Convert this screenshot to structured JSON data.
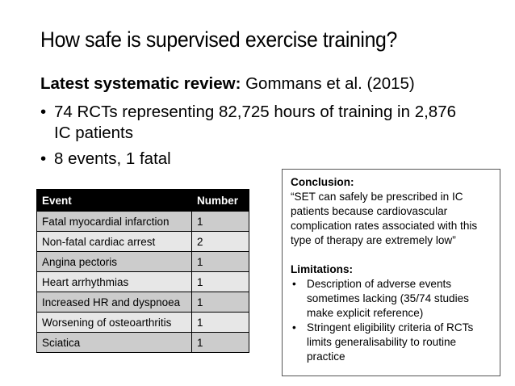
{
  "slide": {
    "title": "How safe is supervised exercise training?",
    "subhead_bold": "Latest systematic review:",
    "subhead_rest": " Gommans et al. (2015)",
    "bullets": [
      "74 RCTs representing 82,725 hours of training in 2,876 IC patients",
      "8 events, 1 fatal"
    ]
  },
  "table": {
    "headers": [
      "Event",
      "Number"
    ],
    "rows": [
      [
        "Fatal myocardial infarction",
        "1"
      ],
      [
        "Non-fatal cardiac arrest",
        "2"
      ],
      [
        "Angina pectoris",
        "1"
      ],
      [
        "Heart arrhythmias",
        "1"
      ],
      [
        "Increased HR and dyspnoea",
        "1"
      ],
      [
        "Worsening of osteoarthritis",
        "1"
      ],
      [
        "Sciatica",
        "1"
      ]
    ]
  },
  "box": {
    "conclusion_heading": "Conclusion:",
    "conclusion_text": "“SET can safely be prescribed in IC patients because cardiovascular complication rates associated with this type of therapy are extremely low”",
    "limitations_heading": "Limitations:",
    "limitations": [
      "Description of adverse events sometimes lacking (35/74 studies make explicit reference)",
      "Stringent eligibility criteria of RCTs limits generalisability to routine practice"
    ]
  }
}
